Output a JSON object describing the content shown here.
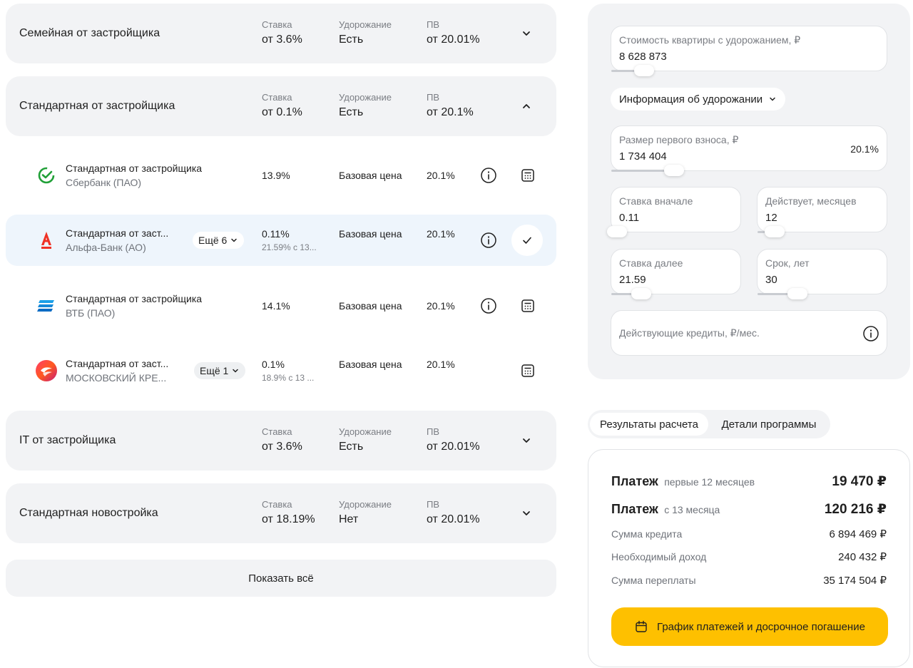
{
  "groups": [
    {
      "title": "Семейная от застройщика",
      "rate_label": "Ставка",
      "rate": "от 3.6%",
      "markup_label": "Удорожание",
      "markup": "Есть",
      "pv_label": "ПВ",
      "pv": "от 20.01%"
    },
    {
      "title": "Стандартная от застройщика",
      "rate_label": "Ставка",
      "rate": "от 0.1%",
      "markup_label": "Удорожание",
      "markup": "Есть",
      "pv_label": "ПВ",
      "pv": "от 20.1%"
    },
    {
      "title": "IT от застройщика",
      "rate_label": "Ставка",
      "rate": "от 3.6%",
      "markup_label": "Удорожание",
      "markup": "Есть",
      "pv_label": "ПВ",
      "pv": "от 20.01%"
    },
    {
      "title": "Стандартная новостройка",
      "rate_label": "Ставка",
      "rate": "от 18.19%",
      "markup_label": "Удорожание",
      "markup": "Нет",
      "pv_label": "ПВ",
      "pv": "от 20.01%"
    }
  ],
  "offers": [
    {
      "name": "Стандартная от застройщика",
      "bank": "Сбербанк (ПАО)",
      "rate": "13.9%",
      "rate_sub": "",
      "price": "Базовая цена",
      "pv": "20.1%",
      "more": ""
    },
    {
      "name": "Стандартная от заст...",
      "bank": "Альфа-Банк (АО)",
      "rate": "0.11%",
      "rate_sub": "21.59% с 13...",
      "price": "Базовая цена",
      "pv": "20.1%",
      "more": "Ещё 6"
    },
    {
      "name": "Стандартная от застройщика",
      "bank": "ВТБ (ПАО)",
      "rate": "14.1%",
      "rate_sub": "",
      "price": "Базовая цена",
      "pv": "20.1%",
      "more": ""
    },
    {
      "name": "Стандартная от заст...",
      "bank": "МОСКОВСКИЙ КРЕ...",
      "rate": "0.1%",
      "rate_sub": "18.9% с 13 ...",
      "price": "Базовая цена",
      "pv": "20.1%",
      "more": "Ещё 1"
    }
  ],
  "show_all": "Показать всё",
  "form": {
    "price_label": "Стоимость квартиры с удорожанием, ₽",
    "price_value": "8 628 873",
    "info_label": "Информация об удорожании",
    "down_label": "Размер первого взноса, ₽",
    "down_value": "1 734 404",
    "down_percent": "20.1%",
    "rate_start_label": "Ставка вначале",
    "rate_start_value": "0.11",
    "months_label": "Действует, месяцев",
    "months_value": "12",
    "rate_next_label": "Ставка далее",
    "rate_next_value": "21.59",
    "term_label": "Срок, лет",
    "term_value": "30",
    "credits_label": "Действующие кредиты, ₽/мес."
  },
  "tabs": {
    "results": "Результаты расчета",
    "details": "Детали программы"
  },
  "results": {
    "pay1_label": "Платеж",
    "pay1_sub": "первые 12 месяцев",
    "pay1_value": "19 470 ₽",
    "pay2_label": "Платеж",
    "pay2_sub": "с 13 месяца",
    "pay2_value": "120 216 ₽",
    "credit_label": "Сумма кредита",
    "credit_value": "6 894 469 ₽",
    "income_label": "Необходимый доход",
    "income_value": "240 432 ₽",
    "overpay_label": "Сумма переплаты",
    "overpay_value": "35 174 504 ₽",
    "schedule_button": "График платежей и досрочное погашение"
  },
  "colors": {
    "accent": "#fec000",
    "card_bg": "#f2f3f5",
    "selected_row": "#eef5fc",
    "alfa_red": "#ef3124",
    "vtb_blue": "#0a2896",
    "sber_green": "#21a038"
  },
  "icons": [
    "chevron-down-icon",
    "chevron-up-icon",
    "info-icon",
    "calculator-icon",
    "check-icon",
    "calendar-icon"
  ]
}
